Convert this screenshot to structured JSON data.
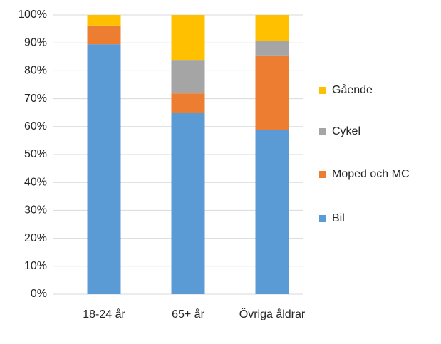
{
  "chart_data": {
    "type": "stacked_bar",
    "categories": [
      "18-24 år",
      "65+ år",
      "Övriga åldrar"
    ],
    "series": [
      {
        "name": "Bil",
        "color": "#5b9bd5",
        "values": [
          89.5,
          64.8,
          58.7
        ]
      },
      {
        "name": "Moped och MC",
        "color": "#ed7d31",
        "values": [
          6.7,
          7.1,
          26.8
        ]
      },
      {
        "name": "Cykel",
        "color": "#a5a5a5",
        "values": [
          0,
          12,
          5.3
        ]
      },
      {
        "name": "Gående",
        "color": "#ffc000",
        "values": [
          3.8,
          16.1,
          9.2
        ]
      }
    ],
    "ylim": [
      0,
      100
    ],
    "yticks": [
      {
        "value": 0,
        "label": "0%"
      },
      {
        "value": 10,
        "label": "10%"
      },
      {
        "value": 20,
        "label": "20%"
      },
      {
        "value": 30,
        "label": "30%"
      },
      {
        "value": 40,
        "label": "40%"
      },
      {
        "value": 50,
        "label": "50%"
      },
      {
        "value": 60,
        "label": "60%"
      },
      {
        "value": 70,
        "label": "70%"
      },
      {
        "value": 80,
        "label": "80%"
      },
      {
        "value": 90,
        "label": "90%"
      },
      {
        "value": 100,
        "label": "100%"
      }
    ],
    "grid": true,
    "legend": "right"
  }
}
